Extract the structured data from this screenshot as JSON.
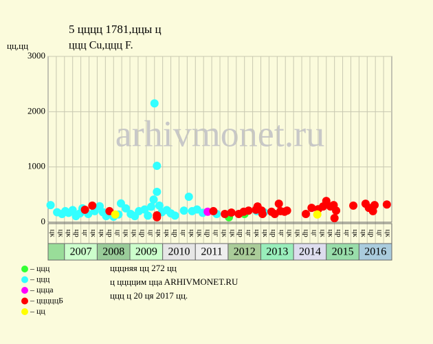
{
  "chart_data": {
    "type": "scatter",
    "title": "5 цццц 1781,ццы ц",
    "subtitle": "ццц Cu,ццц F.",
    "y_label": "цц,цц",
    "watermark": "arhivmonet.ru",
    "ylim": [
      0,
      3000
    ],
    "yticks": [
      0,
      1000,
      2000,
      3000
    ],
    "xlim": [
      0,
      42
    ],
    "grid": true,
    "quarters": [
      "цк",
      "цк",
      "цк",
      "цр",
      "цг",
      "цк",
      "цк",
      "цр",
      "цг",
      "цк",
      "цк",
      "цр",
      "цг",
      "цк",
      "цк",
      "цр",
      "цг",
      "цк",
      "цк",
      "цр",
      "цг",
      "цк",
      "цк",
      "цр",
      "цг",
      "цк",
      "цк",
      "цр",
      "цг",
      "цк",
      "цк",
      "цр",
      "цг",
      "цк",
      "цк",
      "цр",
      "цг",
      "цк",
      "цк",
      "цр",
      "цг",
      "цк"
    ],
    "years": [
      null,
      "2007",
      "2008",
      "2009",
      "2010",
      "2011",
      "2012",
      "2013",
      "2014",
      "2015",
      "2016"
    ],
    "year_colors": [
      "#99dd99",
      "#ccffcc",
      "#99cc99",
      "#ccffcc",
      "#e6e6e6",
      "#eeeeee",
      "#aacc99",
      "#99eebb",
      "#ddddee",
      "#99ddaa",
      "#aaccdd"
    ],
    "series": [
      {
        "name": "– ццц",
        "color": "#33ff33",
        "x": [
          22.1,
          24.0
        ],
        "values": [
          90,
          150
        ]
      },
      {
        "name": "– ццц",
        "color": "#33ffff",
        "x": [
          0.3,
          1.1,
          1.7,
          2.1,
          2.5,
          3.0,
          3.4,
          3.9,
          4.2,
          4.9,
          5.7,
          6.3,
          6.7,
          7.1,
          8.0,
          8.6,
          8.9,
          9.5,
          10.1,
          10.6,
          11.1,
          11.8,
          12.2,
          12.6,
          12.9,
          13.0,
          13.3,
          13.3,
          13.6,
          13.9,
          14.5,
          15.0,
          15.5,
          16.6,
          17.2,
          17.6,
          18.2,
          18.9,
          20.6,
          25.5,
          26.4
        ],
        "values": [
          310,
          180,
          150,
          200,
          170,
          220,
          110,
          160,
          250,
          150,
          200,
          290,
          180,
          110,
          100,
          140,
          340,
          250,
          150,
          110,
          200,
          230,
          120,
          280,
          410,
          2150,
          1020,
          550,
          300,
          180,
          220,
          160,
          120,
          210,
          460,
          200,
          230,
          170,
          150,
          200,
          180
        ]
      },
      {
        "name": "– ццца",
        "color": "#ff00ff",
        "x": [
          19.5
        ],
        "values": [
          190
        ]
      },
      {
        "name": "– цццццБ",
        "color": "#ff0000",
        "x": [
          4.5,
          5.4,
          7.5,
          13.3,
          13.3,
          20.2,
          21.6,
          22.4,
          23.3,
          23.9,
          24.5,
          25.4,
          25.6,
          26.1,
          26.2,
          27.3,
          27.7,
          28.2,
          28.4,
          28.9,
          29.2,
          31.5,
          32.2,
          33.0,
          33.6,
          34.0,
          34.5,
          34.9,
          35.2,
          35.0,
          37.3,
          38.8,
          39.2,
          39.7,
          39.9,
          41.4
        ],
        "values": [
          225,
          300,
          200,
          90,
          125,
          200,
          150,
          175,
          150,
          190,
          210,
          225,
          285,
          210,
          150,
          190,
          150,
          335,
          200,
          190,
          210,
          150,
          260,
          235,
          285,
          385,
          285,
          310,
          210,
          75,
          300,
          335,
          260,
          200,
          310,
          320
        ]
      },
      {
        "name": "– цц",
        "color": "#ffff00",
        "x": [
          8.2,
          32.9
        ],
        "values": [
          140,
          140
        ]
      }
    ],
    "notes": [
      "цццняя цц 272 цц",
      "ц ццццим ццa ARHIVMONET.RU",
      "ццц ц 20 ця 2017 цц."
    ]
  }
}
